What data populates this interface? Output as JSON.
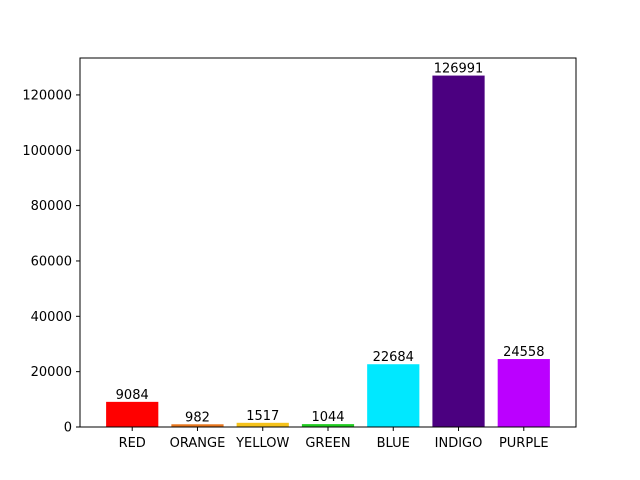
{
  "chart_data": {
    "type": "bar",
    "categories": [
      "RED",
      "ORANGE",
      "YELLOW",
      "GREEN",
      "BLUE",
      "INDIGO",
      "PURPLE"
    ],
    "values": [
      9084,
      982,
      1517,
      1044,
      22684,
      126991,
      24558
    ],
    "colors": [
      "#ff0000",
      "#e8761e",
      "#f5c21b",
      "#22cc22",
      "#00e8ff",
      "#4b0080",
      "#bb00ff"
    ],
    "data_labels": [
      "9084",
      "982",
      "1517",
      "1044",
      "22684",
      "126991",
      "24558"
    ],
    "yticks": [
      0,
      20000,
      40000,
      60000,
      80000,
      100000,
      120000
    ],
    "ytick_labels": [
      "0",
      "20000",
      "40000",
      "60000",
      "80000",
      "100000",
      "120000"
    ],
    "ylim": [
      0,
      133340
    ],
    "title": "",
    "xlabel": "",
    "ylabel": "",
    "grid": false,
    "legend": false
  }
}
